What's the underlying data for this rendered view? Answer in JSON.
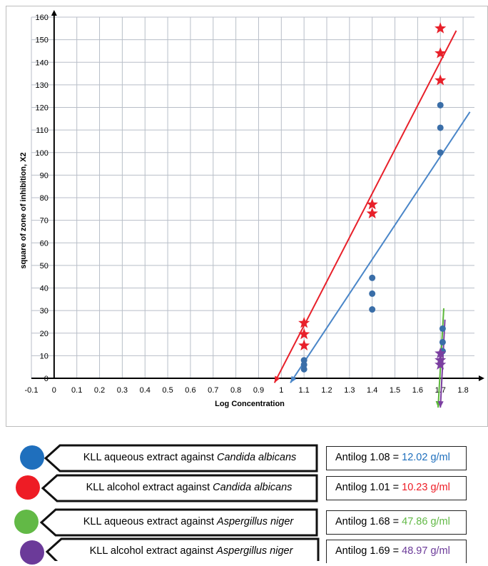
{
  "chart_data": {
    "type": "scatter",
    "title": "",
    "xlabel": "Log Concentration",
    "ylabel": "square of zone of inhibition, X2",
    "xlim": [
      -0.1,
      1.85
    ],
    "ylim": [
      0,
      160
    ],
    "xticks": [
      "-0.1",
      "0",
      "0.1",
      "0.2",
      "0.3",
      "0.4",
      "0.5",
      "0.6",
      "0.7",
      "0.8",
      "0.9",
      "1",
      "1.1",
      "1.2",
      "1.3",
      "1.4",
      "1.5",
      "1.6",
      "1.7",
      "1.8"
    ],
    "yticks": [
      "0",
      "10",
      "20",
      "30",
      "40",
      "50",
      "60",
      "70",
      "80",
      "90",
      "100",
      "110",
      "120",
      "130",
      "140",
      "150",
      "160"
    ],
    "grid": true,
    "series": [
      {
        "key": "aqueous_candida",
        "marker": "circle",
        "color": "#3a6ea8",
        "line_color": "#4a86c8",
        "points": [
          [
            1.1,
            4
          ],
          [
            1.1,
            6
          ],
          [
            1.1,
            8
          ],
          [
            1.4,
            30.5
          ],
          [
            1.4,
            37.5
          ],
          [
            1.4,
            44.5
          ],
          [
            1.7,
            100
          ],
          [
            1.7,
            111
          ],
          [
            1.7,
            121
          ]
        ],
        "fit_line": [
          [
            1.04,
            -2
          ],
          [
            1.83,
            118
          ]
        ]
      },
      {
        "key": "alcohol_candida",
        "marker": "star",
        "color": "#e8202a",
        "line_color": "#e8202a",
        "points": [
          [
            1.1,
            14.5
          ],
          [
            1.1,
            19.5
          ],
          [
            1.1,
            24.5
          ],
          [
            1.4,
            73
          ],
          [
            1.4,
            77
          ],
          [
            1.7,
            132
          ],
          [
            1.7,
            144
          ],
          [
            1.7,
            155
          ]
        ],
        "fit_line": [
          [
            0.97,
            -2
          ],
          [
            1.77,
            154
          ]
        ]
      },
      {
        "key": "aqueous_aspergillus",
        "marker": "circle",
        "color": "#3a6ea8",
        "line_color": "#5cb83a",
        "points": [
          [
            1.71,
            12
          ],
          [
            1.71,
            16
          ],
          [
            1.71,
            22
          ]
        ],
        "fit_line": [
          [
            1.715,
            31
          ],
          [
            1.69,
            -13
          ]
        ]
      },
      {
        "key": "alcohol_aspergillus",
        "marker": "star",
        "color": "#7b3fa0",
        "line_color": "#7b3fa0",
        "points": [
          [
            1.7,
            6
          ],
          [
            1.7,
            8
          ],
          [
            1.7,
            11
          ]
        ],
        "fit_line": [
          [
            1.72,
            26
          ],
          [
            1.7,
            -13
          ]
        ]
      }
    ]
  },
  "legend": [
    {
      "color": "#1f6fbd",
      "text_plain": "KLL aqueous extract against ",
      "text_italic": "Candida albicans",
      "result_prefix": "Antilog 1.08 = ",
      "result_value": "12.02 g/ml",
      "result_color": "#1f6fbd"
    },
    {
      "color": "#ee1c25",
      "text_plain": "KLL alcohol extract against ",
      "text_italic": "Candida albicans",
      "result_prefix": "Antilog 1.01 = ",
      "result_value": "10.23 g/ml",
      "result_color": "#ee1c25"
    },
    {
      "color": "#62b946",
      "text_plain": "KLL aqueous extract against ",
      "text_italic": "Aspergillus niger",
      "result_prefix": "Antilog 1.68 = ",
      "result_value": "47.86 g/ml",
      "result_color": "#62b946"
    },
    {
      "color": "#6b3a99",
      "text_plain": "KLL alcohol extract against ",
      "text_italic": "Aspergillus niger",
      "result_prefix": "Antilog 1.69 = ",
      "result_value": "48.97 g/ml",
      "result_color": "#6b3a99"
    }
  ]
}
